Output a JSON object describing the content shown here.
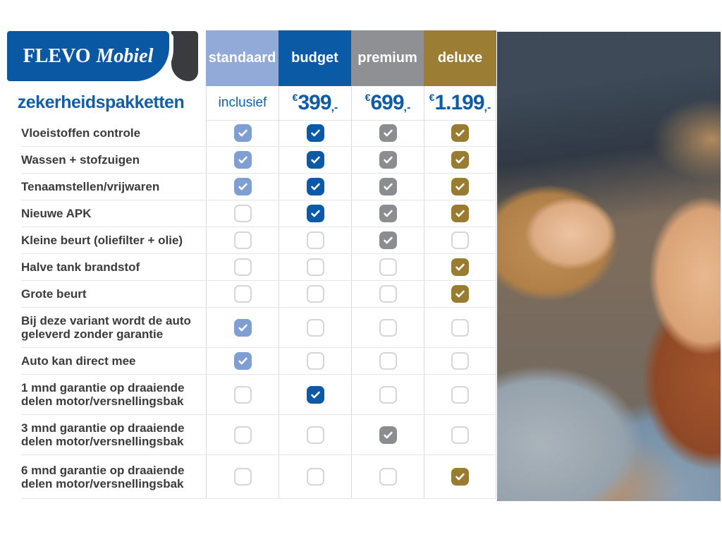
{
  "logo": {
    "brand_primary": "FLEVO",
    "brand_secondary": "Mobiel"
  },
  "page_title": "zekerheidspakketten",
  "colors": {
    "brand_blue": "#0a57a4",
    "accent_text_blue": "#135fa5",
    "price_blue": "#0d5ca8",
    "logo_swoosh_dark": "#3a3b3e"
  },
  "icons": {
    "checked": "check-icon"
  },
  "table": {
    "packages": [
      {
        "id": "standaard",
        "label": "standaard",
        "header_color": "#92aad8",
        "check_color": "#7f9fd2",
        "price_type": "text",
        "price_text": "inclusief"
      },
      {
        "id": "budget",
        "label": "budget",
        "header_color": "#0b5aa5",
        "check_color": "#0b5aa5",
        "price_type": "amount",
        "currency": "€",
        "amount": "399",
        "suffix": ",-"
      },
      {
        "id": "premium",
        "label": "premium",
        "header_color": "#8e9093",
        "check_color": "#8b8d90",
        "price_type": "amount",
        "currency": "€",
        "amount": "699",
        "suffix": ",-"
      },
      {
        "id": "deluxe",
        "label": "deluxe",
        "header_color": "#9b7d33",
        "check_color": "#997c31",
        "price_type": "amount",
        "currency": "€",
        "amount": "1.199",
        "suffix": ",-"
      }
    ],
    "rows": [
      {
        "label": "Vloeistoffen controle",
        "checks": [
          true,
          true,
          true,
          true
        ],
        "tall": false
      },
      {
        "label": "Wassen + stofzuigen",
        "checks": [
          true,
          true,
          true,
          true
        ],
        "tall": false
      },
      {
        "label": "Tenaamstellen/vrijwaren",
        "checks": [
          true,
          true,
          true,
          true
        ],
        "tall": false
      },
      {
        "label": "Nieuwe APK",
        "checks": [
          false,
          true,
          true,
          true
        ],
        "tall": false
      },
      {
        "label": "Kleine beurt (oliefilter + olie)",
        "checks": [
          false,
          false,
          true,
          false
        ],
        "tall": false
      },
      {
        "label": "Halve tank brandstof",
        "checks": [
          false,
          false,
          false,
          true
        ],
        "tall": false
      },
      {
        "label": "Grote beurt",
        "checks": [
          false,
          false,
          false,
          true
        ],
        "tall": false
      },
      {
        "label": "Bij deze variant wordt de auto geleverd zonder garantie",
        "checks": [
          true,
          false,
          false,
          false
        ],
        "tall": true
      },
      {
        "label": "Auto kan direct mee",
        "checks": [
          true,
          false,
          false,
          false
        ],
        "tall": false
      },
      {
        "label": "1 mnd garantie op draaiende delen motor/versnellingsbak",
        "checks": [
          false,
          true,
          false,
          false
        ],
        "tall": true
      },
      {
        "label": "3 mnd garantie op draaiende delen motor/versnellingsbak",
        "checks": [
          false,
          false,
          true,
          false
        ],
        "tall": true
      },
      {
        "label": "6 mnd garantie op draaiende delen motor/versnellingsbak",
        "checks": [
          false,
          false,
          false,
          true
        ],
        "tall": true
      }
    ]
  }
}
